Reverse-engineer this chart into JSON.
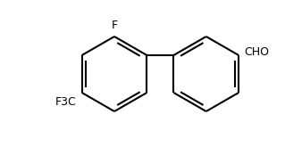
{
  "bg_color": "#ffffff",
  "line_color": "#000000",
  "text_color": "#000000",
  "line_width": 1.5,
  "font_size": 9,
  "figsize": [
    3.19,
    1.65
  ],
  "dpi": 100,
  "F_label": "F",
  "CF3_label": "F3C",
  "CHO_label": "CHO",
  "xlim": [
    0,
    319
  ],
  "ylim": [
    0,
    165
  ]
}
